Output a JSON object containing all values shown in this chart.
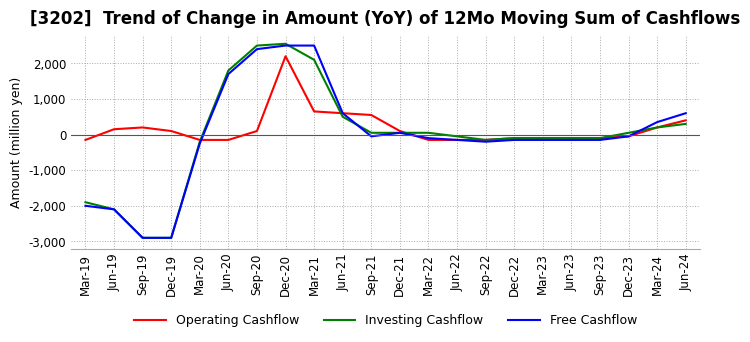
{
  "title": "[3202]  Trend of Change in Amount (YoY) of 12Mo Moving Sum of Cashflows",
  "ylabel": "Amount (million yen)",
  "x_labels": [
    "Mar-19",
    "Jun-19",
    "Sep-19",
    "Dec-19",
    "Mar-20",
    "Jun-20",
    "Sep-20",
    "Dec-20",
    "Mar-21",
    "Jun-21",
    "Sep-21",
    "Dec-21",
    "Mar-22",
    "Jun-22",
    "Sep-22",
    "Dec-22",
    "Mar-23",
    "Jun-23",
    "Sep-23",
    "Dec-23",
    "Mar-24",
    "Jun-24"
  ],
  "operating": [
    -150,
    150,
    200,
    100,
    -150,
    -150,
    100,
    2200,
    650,
    600,
    550,
    100,
    -150,
    -150,
    -150,
    -100,
    -100,
    -100,
    -100,
    -50,
    200,
    400
  ],
  "investing": [
    -1900,
    -2100,
    -2900,
    -2900,
    -200,
    1800,
    2500,
    2550,
    2100,
    500,
    50,
    50,
    50,
    -50,
    -150,
    -100,
    -100,
    -100,
    -100,
    50,
    200,
    300
  ],
  "free": [
    -2000,
    -2100,
    -2900,
    -2900,
    -250,
    1700,
    2400,
    2500,
    2500,
    600,
    -50,
    50,
    -100,
    -150,
    -200,
    -150,
    -150,
    -150,
    -150,
    -50,
    350,
    600
  ],
  "ylim": [
    -3200,
    2800
  ],
  "yticks": [
    -3000,
    -2000,
    -1000,
    0,
    1000,
    2000
  ],
  "operating_color": "#ff0000",
  "investing_color": "#008000",
  "free_color": "#0000ff",
  "background_color": "#ffffff",
  "grid_color": "#aaaaaa",
  "title_fontsize": 12,
  "label_fontsize": 9,
  "tick_fontsize": 8.5
}
